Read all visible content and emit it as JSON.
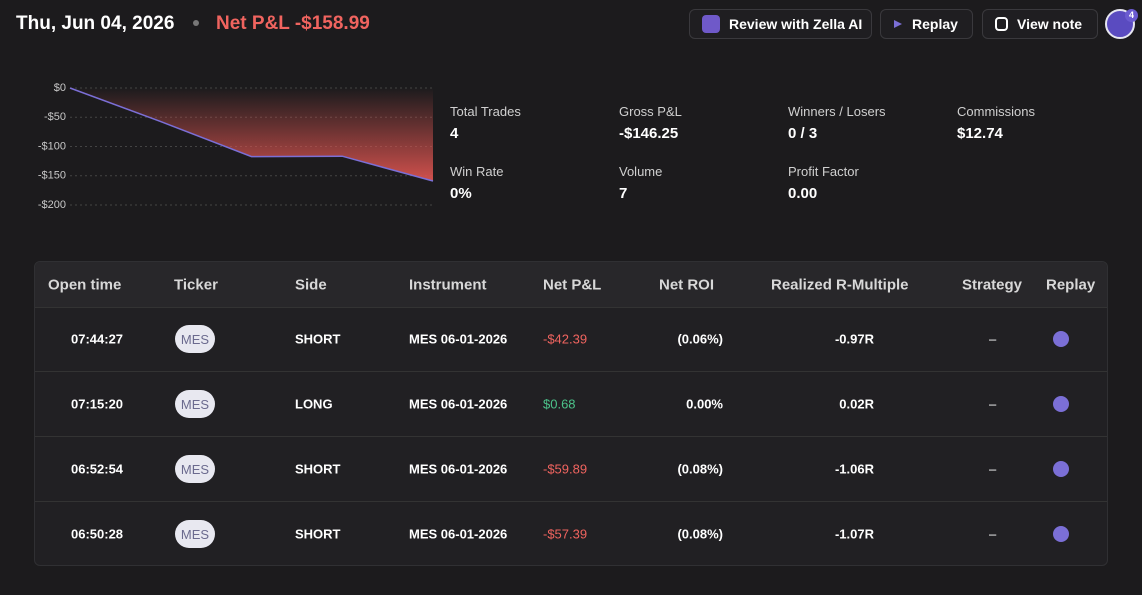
{
  "header": {
    "date": "Thu, Jun 04, 2026",
    "net_pnl": "Net P&L -$158.99",
    "buttons": [
      "Review with Zella AI",
      "Replay",
      "View note"
    ],
    "notification_count": "4"
  },
  "chart_data": {
    "type": "area",
    "categories": [
      null,
      null,
      null,
      null,
      null
    ],
    "values": [
      0,
      -57.39,
      -117.28,
      -116.6,
      -158.99
    ],
    "color": "#7b6fd6",
    "fill": "#d9534f",
    "ylim": [
      -200,
      0
    ],
    "yticks": [
      {
        "value": 0,
        "label": "$0"
      },
      {
        "value": -50,
        "label": "-$50"
      },
      {
        "value": -100,
        "label": "-$100"
      },
      {
        "value": -150,
        "label": "-$150"
      },
      {
        "value": -200,
        "label": "-$200"
      }
    ],
    "grid": true
  },
  "stats": [
    {
      "label": "Total Trades",
      "value": "4"
    },
    {
      "label": "Gross P&L",
      "value": "-$146.25"
    },
    {
      "label": "Winners / Losers",
      "value": "0 / 3"
    },
    {
      "label": "Commissions",
      "value": "$12.74"
    },
    {
      "label": "Win Rate",
      "value": "0%"
    },
    {
      "label": "Volume",
      "value": "7"
    },
    {
      "label": "Profit Factor",
      "value": "0.00"
    }
  ],
  "table": {
    "columns": [
      "Open time",
      "Ticker",
      "Side",
      "Instrument",
      "Net P&L",
      "Net ROI",
      "Realized R-Multiple",
      "Strategy",
      "Replay"
    ],
    "rows": [
      [
        "07:44:27",
        "MES",
        "SHORT",
        "MES 06-01-2026",
        "-$42.39",
        "(0.06%)",
        "-0.97R",
        "–"
      ],
      [
        "07:15:20",
        "MES",
        "LONG",
        "MES 06-01-2026",
        "$0.68",
        "0.00%",
        "0.02R",
        "–"
      ],
      [
        "06:52:54",
        "MES",
        "SHORT",
        "MES 06-01-2026",
        "-$59.89",
        "(0.08%)",
        "-1.06R",
        "–"
      ],
      [
        "06:50:28",
        "MES",
        "SHORT",
        "MES 06-01-2026",
        "-$57.39",
        "(0.08%)",
        "-1.07R",
        "–"
      ]
    ]
  }
}
